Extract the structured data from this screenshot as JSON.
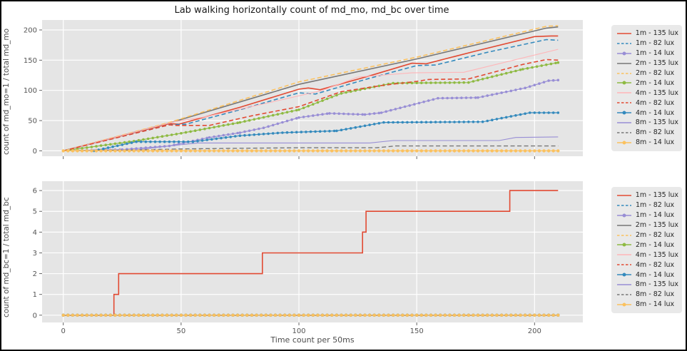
{
  "figure": {
    "title": "Lab walking horizontally count of md_mo, md_bc over time",
    "background": "#ffffff",
    "axes_background": "#e5e5e5",
    "grid_color": "#ffffff",
    "tick_color": "#555555"
  },
  "chart_data": [
    {
      "type": "line",
      "ylabel": "count of md_mo=1 / total md_mo",
      "xlabel": "",
      "xlim": [
        -9,
        220.5
      ],
      "ylim": [
        -9,
        216.5
      ],
      "xticks": [
        0,
        50,
        100,
        150,
        200
      ],
      "yticks": [
        0,
        50,
        100,
        150,
        200
      ],
      "show_x_tick_labels": false,
      "grid": true,
      "legend_position": "right",
      "series": [
        {
          "name": "1m - 135 lux",
          "color": "#E24A33",
          "style": "solid",
          "width": 1.6,
          "points": [
            [
              0,
              0
            ],
            [
              23,
              23
            ],
            [
              45,
              45
            ],
            [
              49,
              44
            ],
            [
              75,
              72
            ],
            [
              100,
              102
            ],
            [
              104,
              104
            ],
            [
              109,
              101
            ],
            [
              130,
              124
            ],
            [
              148,
              145
            ],
            [
              154,
              144
            ],
            [
              175,
              165
            ],
            [
              200,
              189
            ],
            [
              207,
              190
            ],
            [
              210,
              190
            ]
          ]
        },
        {
          "name": "1m - 82 lux",
          "color": "#348ABD",
          "style": "dashed",
          "width": 1.6,
          "points": [
            [
              0,
              0
            ],
            [
              45,
              43
            ],
            [
              52,
              44
            ],
            [
              75,
              68
            ],
            [
              100,
              96
            ],
            [
              107,
              94
            ],
            [
              130,
              120
            ],
            [
              150,
              141
            ],
            [
              158,
              142
            ],
            [
              180,
              163
            ],
            [
              205,
              184
            ],
            [
              210,
              183
            ]
          ]
        },
        {
          "name": "1m - 14 lux",
          "color": "#988ED5",
          "style": "marker",
          "width": 1.2,
          "points": [
            [
              0,
              0
            ],
            [
              25,
              2
            ],
            [
              45,
              8
            ],
            [
              62,
              22
            ],
            [
              75,
              30
            ],
            [
              85,
              38
            ],
            [
              100,
              55
            ],
            [
              113,
              62
            ],
            [
              128,
              60
            ],
            [
              135,
              63
            ],
            [
              159,
              87
            ],
            [
              176,
              88
            ],
            [
              196,
              104
            ],
            [
              206,
              116
            ],
            [
              210,
              117
            ]
          ]
        },
        {
          "name": "2m - 135 lux",
          "color": "#777777",
          "style": "solid",
          "width": 1.6,
          "points": [
            [
              0,
              0
            ],
            [
              45,
              46
            ],
            [
              100,
              110
            ],
            [
              150,
              152
            ],
            [
              205,
              203
            ],
            [
              210,
              205
            ]
          ]
        },
        {
          "name": "2m - 82 lux",
          "color": "#FBC15E",
          "style": "dashed",
          "width": 1.6,
          "points": [
            [
              0,
              0
            ],
            [
              45,
              47
            ],
            [
              100,
              114
            ],
            [
              150,
              155
            ],
            [
              205,
              206
            ],
            [
              210,
              207
            ]
          ]
        },
        {
          "name": "2m - 14 lux",
          "color": "#8EBA42",
          "style": "marker",
          "width": 1.2,
          "points": [
            [
              0,
              0
            ],
            [
              30,
              16
            ],
            [
              50,
              29
            ],
            [
              75,
              47
            ],
            [
              100,
              68
            ],
            [
              118,
              95
            ],
            [
              140,
              112
            ],
            [
              172,
              113
            ],
            [
              195,
              135
            ],
            [
              210,
              146
            ]
          ]
        },
        {
          "name": "4m - 135 lux",
          "color": "#FFB5B8",
          "style": "solid",
          "width": 1.1,
          "points": [
            [
              0,
              0
            ],
            [
              47,
              48
            ],
            [
              60,
              56
            ],
            [
              90,
              82
            ],
            [
              110,
              100
            ],
            [
              125,
              122
            ],
            [
              148,
              129
            ],
            [
              170,
              130
            ],
            [
              210,
              168
            ]
          ]
        },
        {
          "name": "4m - 82 lux",
          "color": "#E24A33",
          "style": "dashed",
          "width": 1.6,
          "points": [
            [
              0,
              0
            ],
            [
              45,
              43
            ],
            [
              48,
              42
            ],
            [
              62,
              42
            ],
            [
              80,
              58
            ],
            [
              100,
              73
            ],
            [
              118,
              98
            ],
            [
              135,
              108
            ],
            [
              150,
              115
            ],
            [
              155,
              118
            ],
            [
              172,
              119
            ],
            [
              195,
              143
            ],
            [
              205,
              151
            ],
            [
              210,
              150
            ]
          ]
        },
        {
          "name": "4m - 14 lux",
          "color": "#348ABD",
          "style": "marker",
          "width": 1.2,
          "points": [
            [
              0,
              0
            ],
            [
              13,
              0
            ],
            [
              31,
              15
            ],
            [
              55,
              15
            ],
            [
              75,
              25
            ],
            [
              93,
              30
            ],
            [
              116,
              33
            ],
            [
              136,
              47
            ],
            [
              178,
              48
            ],
            [
              198,
              63
            ],
            [
              210,
              63
            ]
          ]
        },
        {
          "name": "8m - 135 lux",
          "color": "#988ED5",
          "style": "solid",
          "width": 1.1,
          "points": [
            [
              0,
              0
            ],
            [
              30,
              1
            ],
            [
              45,
              8
            ],
            [
              57,
              13
            ],
            [
              130,
              13
            ],
            [
              140,
              17
            ],
            [
              185,
              17
            ],
            [
              192,
              22
            ],
            [
              210,
              23
            ]
          ]
        },
        {
          "name": "8m - 82 lux",
          "color": "#777777",
          "style": "dashed",
          "width": 1.4,
          "points": [
            [
              0,
              0
            ],
            [
              25,
              1
            ],
            [
              50,
              3
            ],
            [
              70,
              4
            ],
            [
              100,
              5
            ],
            [
              133,
              5
            ],
            [
              141,
              8
            ],
            [
              210,
              8
            ]
          ]
        },
        {
          "name": "8m - 14 lux",
          "color": "#FBC15E",
          "style": "marker",
          "width": 1.2,
          "points": [
            [
              0,
              0
            ],
            [
              210,
              0
            ]
          ]
        }
      ]
    },
    {
      "type": "line",
      "ylabel": "count of md_bc=1 / total md_bc",
      "xlabel": "Time count per 50ms",
      "xlim": [
        -9,
        220.5
      ],
      "ylim": [
        -0.35,
        6.45
      ],
      "xticks": [
        0,
        50,
        100,
        150,
        200
      ],
      "yticks": [
        0,
        1,
        2,
        3,
        4,
        5,
        6
      ],
      "show_x_tick_labels": true,
      "grid": true,
      "legend_position": "right",
      "series": [
        {
          "name": "1m - 135 lux",
          "color": "#E24A33",
          "style": "solid",
          "width": 1.6,
          "points": [
            [
              0,
              0
            ],
            [
              21.5,
              0
            ],
            [
              21.5,
              1
            ],
            [
              23.5,
              1
            ],
            [
              23.5,
              2
            ],
            [
              84.5,
              2
            ],
            [
              84.5,
              3
            ],
            [
              127,
              3
            ],
            [
              127,
              4
            ],
            [
              128.5,
              4
            ],
            [
              128.5,
              5
            ],
            [
              189.5,
              5
            ],
            [
              189.5,
              6
            ],
            [
              210,
              6
            ]
          ]
        },
        {
          "name": "1m - 82 lux",
          "color": "#348ABD",
          "style": "dashed",
          "width": 1.6,
          "points": [
            [
              0,
              0
            ],
            [
              210,
              0
            ]
          ]
        },
        {
          "name": "1m - 14 lux",
          "color": "#988ED5",
          "style": "marker",
          "width": 1.2,
          "points": [
            [
              0,
              0
            ],
            [
              210,
              0
            ]
          ]
        },
        {
          "name": "2m - 135 lux",
          "color": "#777777",
          "style": "solid",
          "width": 1.6,
          "points": [
            [
              0,
              0
            ],
            [
              210,
              0
            ]
          ]
        },
        {
          "name": "2m - 82 lux",
          "color": "#FBC15E",
          "style": "dashed",
          "width": 1.6,
          "points": [
            [
              0,
              0
            ],
            [
              210,
              0
            ]
          ]
        },
        {
          "name": "2m - 14 lux",
          "color": "#8EBA42",
          "style": "marker",
          "width": 1.2,
          "points": [
            [
              0,
              0
            ],
            [
              210,
              0
            ]
          ]
        },
        {
          "name": "4m - 135 lux",
          "color": "#FFB5B8",
          "style": "solid",
          "width": 1.1,
          "points": [
            [
              0,
              0
            ],
            [
              210,
              0
            ]
          ]
        },
        {
          "name": "4m - 82 lux",
          "color": "#E24A33",
          "style": "dashed",
          "width": 1.6,
          "points": [
            [
              0,
              0
            ],
            [
              210,
              0
            ]
          ]
        },
        {
          "name": "4m - 14 lux",
          "color": "#348ABD",
          "style": "marker",
          "width": 1.2,
          "points": [
            [
              0,
              0
            ],
            [
              210,
              0
            ]
          ]
        },
        {
          "name": "8m - 135 lux",
          "color": "#988ED5",
          "style": "solid",
          "width": 1.1,
          "points": [
            [
              0,
              0
            ],
            [
              210,
              0
            ]
          ]
        },
        {
          "name": "8m - 82 lux",
          "color": "#777777",
          "style": "dashed",
          "width": 1.4,
          "points": [
            [
              0,
              0
            ],
            [
              210,
              0
            ]
          ]
        },
        {
          "name": "8m - 14 lux",
          "color": "#FBC15E",
          "style": "marker",
          "width": 1.2,
          "points": [
            [
              0,
              0
            ],
            [
              210,
              0
            ]
          ]
        }
      ]
    }
  ]
}
